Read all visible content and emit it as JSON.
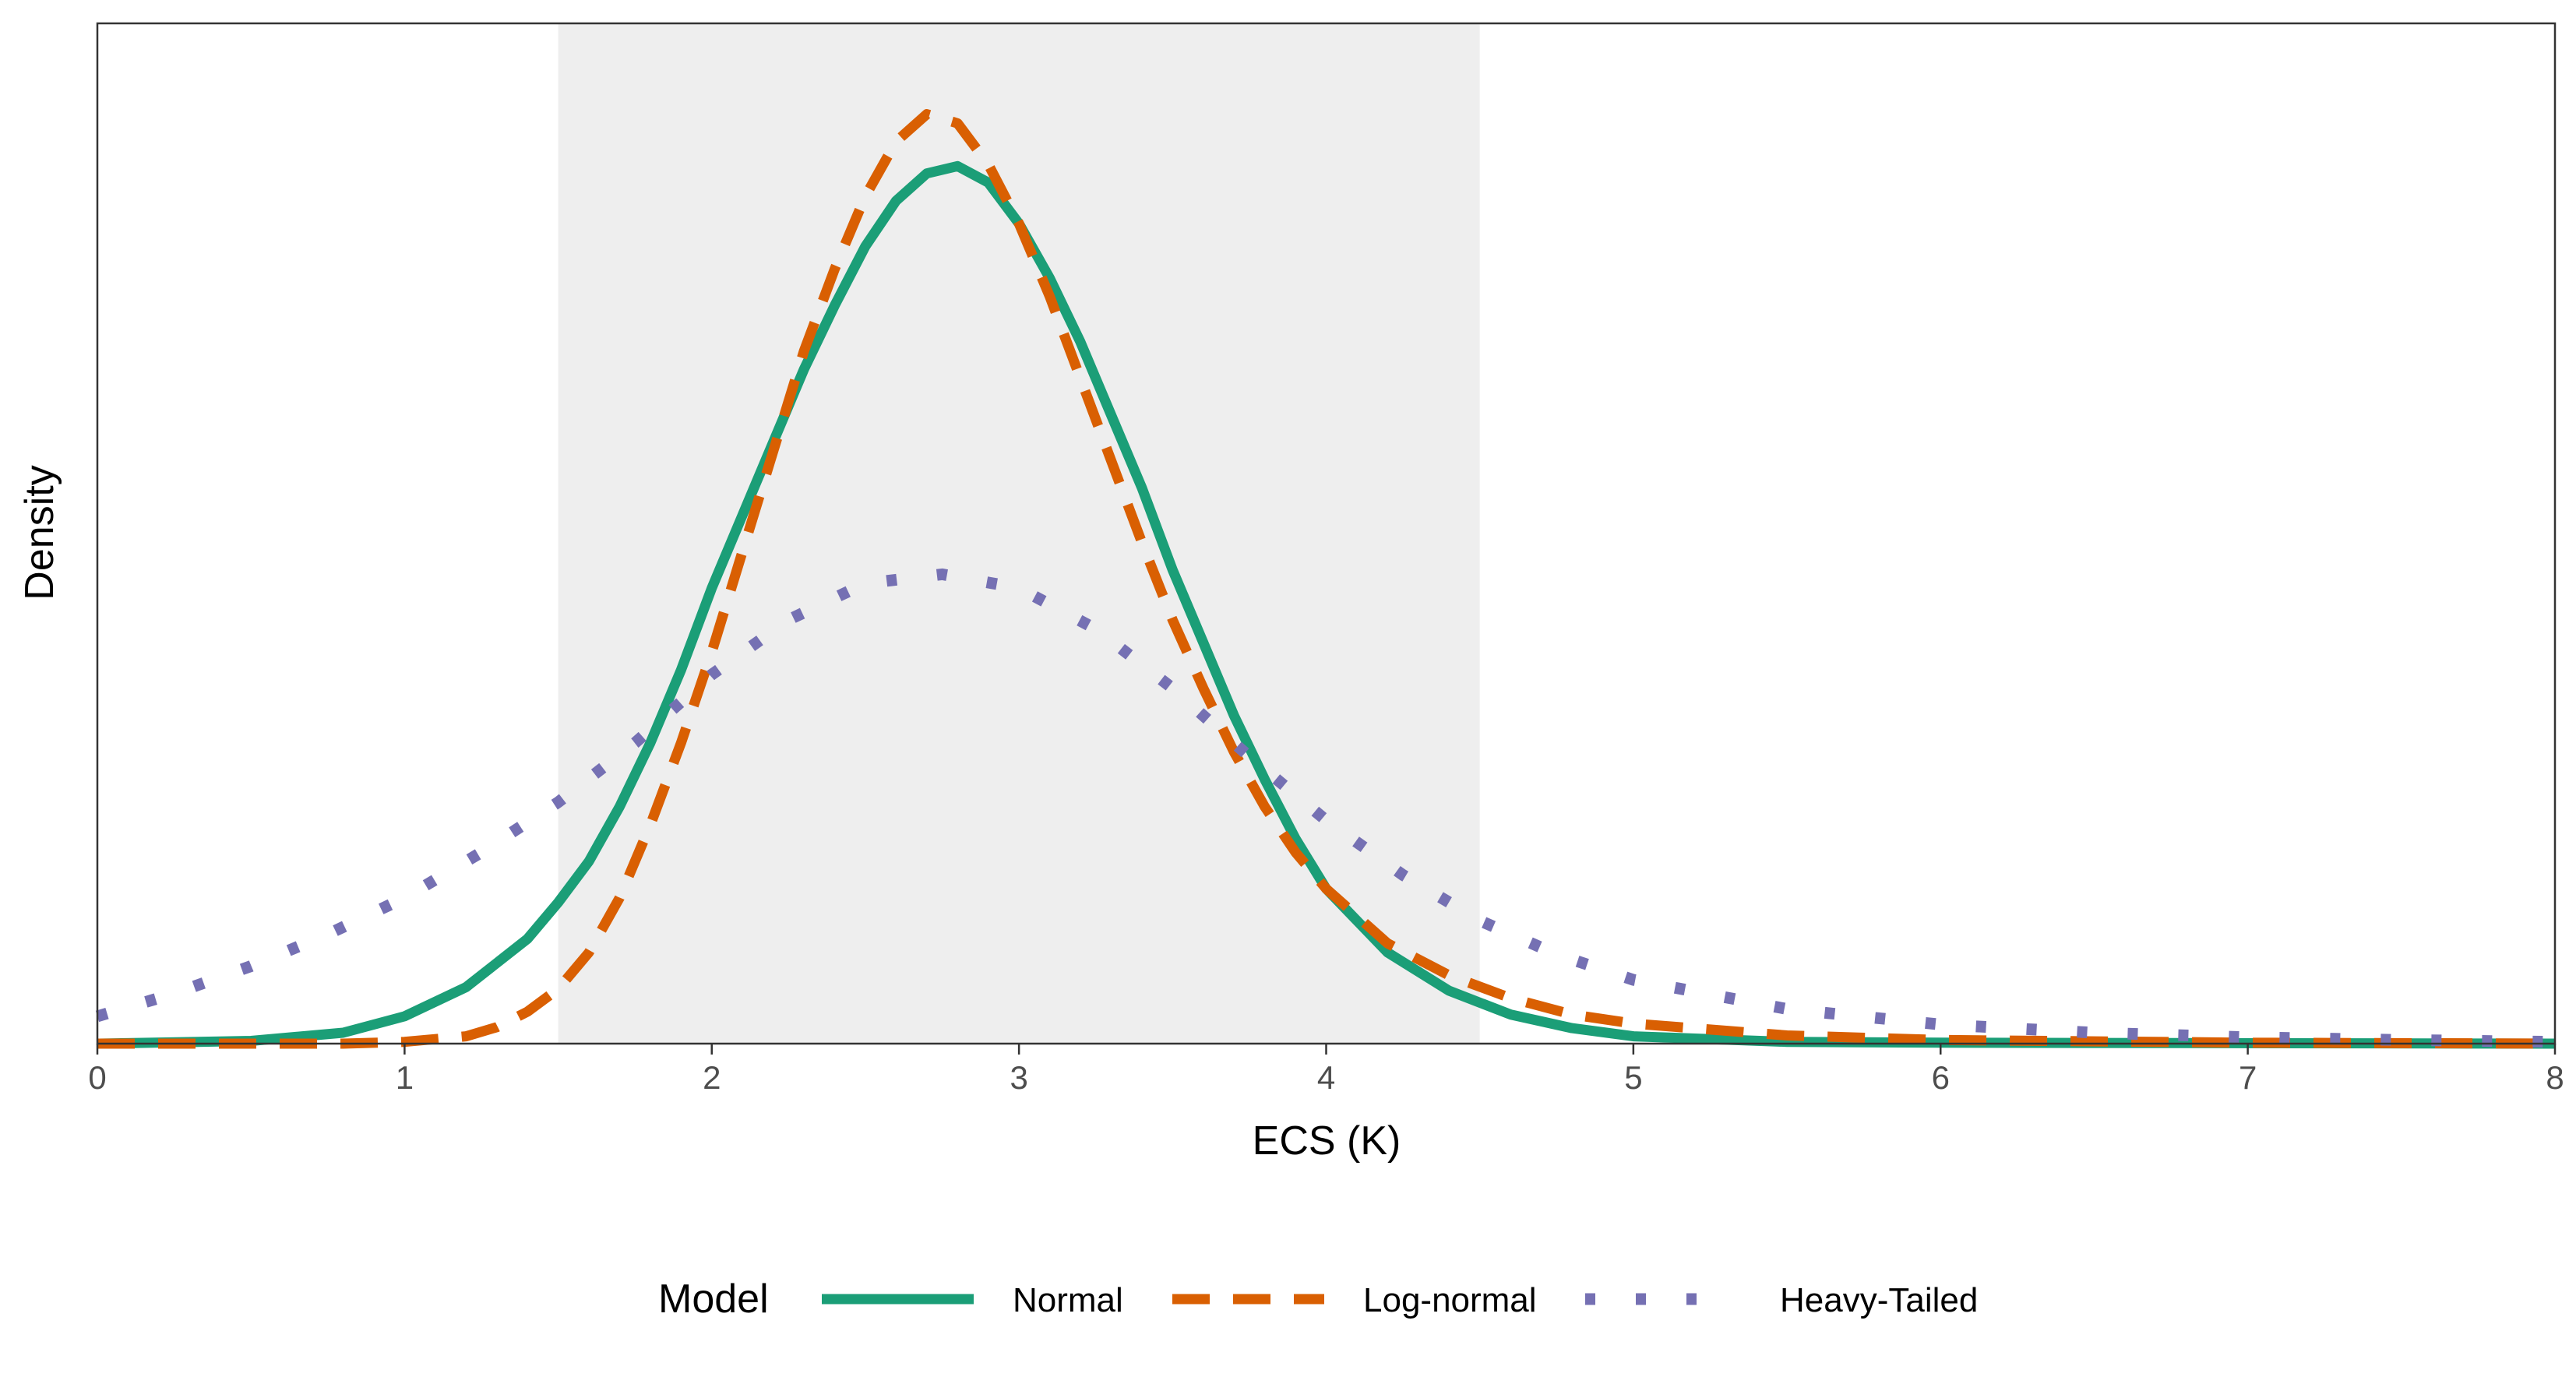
{
  "chart_data": {
    "type": "line",
    "xlabel": "ECS (K)",
    "ylabel": "Density",
    "xlim": [
      0,
      8
    ],
    "ylim": [
      0,
      1.0
    ],
    "x_ticks": [
      "0",
      "1",
      "2",
      "3",
      "4",
      "5",
      "6",
      "7",
      "8"
    ],
    "shaded_region": {
      "from": 1.5,
      "to": 4.5,
      "color": "#eeeeee"
    },
    "grid": false,
    "legend": {
      "title": "Model",
      "position": "bottom"
    },
    "series": [
      {
        "name": "Normal",
        "color": "#1b9e77",
        "dash": "solid",
        "points": [
          [
            0,
            0.0
          ],
          [
            0.5,
            0.003
          ],
          [
            0.8,
            0.012
          ],
          [
            1.0,
            0.03
          ],
          [
            1.2,
            0.062
          ],
          [
            1.4,
            0.115
          ],
          [
            1.5,
            0.155
          ],
          [
            1.6,
            0.2
          ],
          [
            1.7,
            0.26
          ],
          [
            1.8,
            0.33
          ],
          [
            1.9,
            0.41
          ],
          [
            2.0,
            0.5
          ],
          [
            2.1,
            0.58
          ],
          [
            2.2,
            0.66
          ],
          [
            2.3,
            0.74
          ],
          [
            2.4,
            0.81
          ],
          [
            2.5,
            0.875
          ],
          [
            2.6,
            0.925
          ],
          [
            2.7,
            0.955
          ],
          [
            2.8,
            0.963
          ],
          [
            2.9,
            0.945
          ],
          [
            3.0,
            0.9
          ],
          [
            3.1,
            0.84
          ],
          [
            3.2,
            0.77
          ],
          [
            3.3,
            0.69
          ],
          [
            3.4,
            0.61
          ],
          [
            3.5,
            0.52
          ],
          [
            3.6,
            0.44
          ],
          [
            3.7,
            0.36
          ],
          [
            3.8,
            0.29
          ],
          [
            3.9,
            0.225
          ],
          [
            4.0,
            0.17
          ],
          [
            4.2,
            0.1
          ],
          [
            4.4,
            0.058
          ],
          [
            4.6,
            0.032
          ],
          [
            4.8,
            0.017
          ],
          [
            5.0,
            0.008
          ],
          [
            5.5,
            0.002
          ],
          [
            6.0,
            0.001
          ],
          [
            8.0,
            0.0
          ]
        ]
      },
      {
        "name": "Log-normal",
        "color": "#d95f02",
        "dash": "dashed",
        "points": [
          [
            0,
            0.0
          ],
          [
            0.8,
            0.0
          ],
          [
            1.0,
            0.002
          ],
          [
            1.2,
            0.008
          ],
          [
            1.3,
            0.018
          ],
          [
            1.4,
            0.035
          ],
          [
            1.5,
            0.06
          ],
          [
            1.6,
            0.1
          ],
          [
            1.7,
            0.16
          ],
          [
            1.8,
            0.24
          ],
          [
            1.9,
            0.33
          ],
          [
            2.0,
            0.43
          ],
          [
            2.1,
            0.54
          ],
          [
            2.2,
            0.65
          ],
          [
            2.3,
            0.76
          ],
          [
            2.4,
            0.85
          ],
          [
            2.5,
            0.93
          ],
          [
            2.6,
            0.99
          ],
          [
            2.7,
            1.02
          ],
          [
            2.8,
            1.01
          ],
          [
            2.9,
            0.965
          ],
          [
            3.0,
            0.9
          ],
          [
            3.1,
            0.82
          ],
          [
            3.2,
            0.73
          ],
          [
            3.3,
            0.64
          ],
          [
            3.4,
            0.55
          ],
          [
            3.5,
            0.465
          ],
          [
            3.6,
            0.39
          ],
          [
            3.7,
            0.32
          ],
          [
            3.8,
            0.26
          ],
          [
            3.9,
            0.21
          ],
          [
            4.0,
            0.17
          ],
          [
            4.2,
            0.11
          ],
          [
            4.4,
            0.075
          ],
          [
            4.6,
            0.05
          ],
          [
            4.8,
            0.032
          ],
          [
            5.0,
            0.022
          ],
          [
            5.5,
            0.009
          ],
          [
            6.0,
            0.004
          ],
          [
            7.0,
            0.001
          ],
          [
            8.0,
            0.0
          ]
        ]
      },
      {
        "name": "Heavy-Tailed",
        "color": "#7570b3",
        "dash": "dotted",
        "points": [
          [
            0,
            0.03
          ],
          [
            0.25,
            0.055
          ],
          [
            0.5,
            0.085
          ],
          [
            0.75,
            0.12
          ],
          [
            1.0,
            0.16
          ],
          [
            1.25,
            0.21
          ],
          [
            1.5,
            0.265
          ],
          [
            1.75,
            0.33
          ],
          [
            2.0,
            0.405
          ],
          [
            2.25,
            0.465
          ],
          [
            2.5,
            0.505
          ],
          [
            2.75,
            0.515
          ],
          [
            3.0,
            0.5
          ],
          [
            3.25,
            0.455
          ],
          [
            3.5,
            0.39
          ],
          [
            3.75,
            0.315
          ],
          [
            4.0,
            0.245
          ],
          [
            4.25,
            0.185
          ],
          [
            4.5,
            0.135
          ],
          [
            4.75,
            0.098
          ],
          [
            5.0,
            0.07
          ],
          [
            5.5,
            0.038
          ],
          [
            6.0,
            0.021
          ],
          [
            6.5,
            0.012
          ],
          [
            7.0,
            0.007
          ],
          [
            7.5,
            0.004
          ],
          [
            8.0,
            0.002
          ]
        ]
      }
    ]
  }
}
